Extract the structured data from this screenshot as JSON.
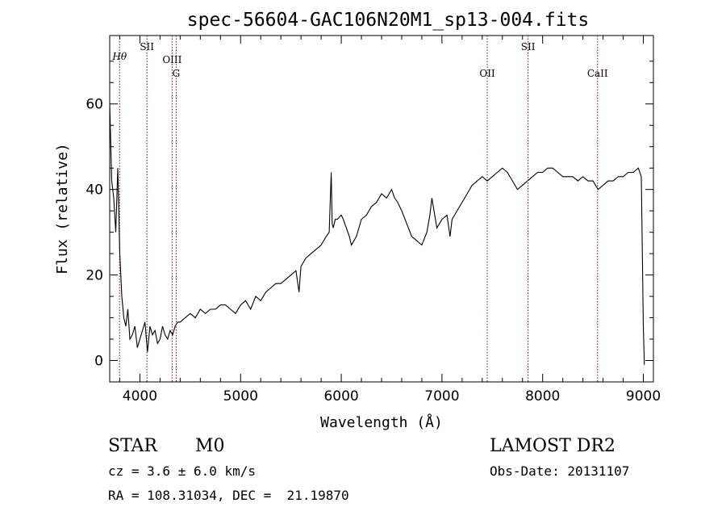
{
  "chart_data": {
    "type": "line",
    "title": "spec-56604-GAC106N20M1_sp13-004.fits",
    "xlabel": "Wavelength (Å)",
    "ylabel": "Flux (relative)",
    "xlim": [
      3700,
      9100
    ],
    "ylim": [
      -5,
      76
    ],
    "xticks": [
      4000,
      5000,
      6000,
      7000,
      8000,
      9000
    ],
    "yticks": [
      0,
      20,
      40,
      60
    ],
    "grid": false,
    "line_color": "#000000",
    "marker_color": "#8b0000",
    "lines": [
      {
        "label": "Hθ",
        "x": 3798
      },
      {
        "label": "SII",
        "x": 4070
      },
      {
        "label": "OIII",
        "x": 4320
      },
      {
        "label": "G",
        "x": 4360
      },
      {
        "label": "OII",
        "x": 7450
      },
      {
        "label": "SII",
        "x": 7855
      },
      {
        "label": "CaII",
        "x": 8545
      }
    ],
    "series": [
      {
        "x": [
          3700,
          3720,
          3740,
          3760,
          3780,
          3800,
          3820,
          3840,
          3860,
          3880,
          3900,
          3925,
          3950,
          3975,
          4000,
          4025,
          4050,
          4075,
          4100,
          4125,
          4150,
          4175,
          4200,
          4225,
          4250,
          4275,
          4300,
          4325,
          4350,
          4375,
          4400,
          4450,
          4500,
          4550,
          4600,
          4650,
          4700,
          4750,
          4800,
          4850,
          4900,
          4950,
          5000,
          5050,
          5100,
          5150,
          5200,
          5250,
          5300,
          5350,
          5400,
          5450,
          5500,
          5550,
          5580,
          5600,
          5650,
          5700,
          5750,
          5800,
          5850,
          5880,
          5900,
          5910,
          5920,
          5940,
          5960,
          6000,
          6020,
          6050,
          6080,
          6100,
          6150,
          6200,
          6250,
          6300,
          6350,
          6400,
          6450,
          6500,
          6530,
          6560,
          6600,
          6650,
          6700,
          6750,
          6800,
          6850,
          6880,
          6900,
          6950,
          7000,
          7050,
          7080,
          7100,
          7150,
          7200,
          7250,
          7300,
          7350,
          7400,
          7450,
          7500,
          7550,
          7600,
          7650,
          7700,
          7750,
          7800,
          7850,
          7900,
          7950,
          8000,
          8050,
          8100,
          8150,
          8200,
          8250,
          8300,
          8350,
          8400,
          8450,
          8500,
          8550,
          8600,
          8650,
          8700,
          8750,
          8800,
          8850,
          8900,
          8950,
          8980,
          9000,
          9010
        ],
        "values": [
          60,
          42,
          38,
          30,
          45,
          25,
          15,
          10,
          8,
          12,
          5,
          6,
          8,
          3,
          5,
          7,
          9,
          2,
          8,
          6,
          7,
          4,
          5,
          8,
          6,
          5,
          7,
          6,
          8,
          9,
          9,
          10,
          11,
          10,
          12,
          11,
          12,
          12,
          13,
          13,
          12,
          11,
          13,
          14,
          12,
          15,
          14,
          16,
          17,
          18,
          18,
          19,
          20,
          21,
          16,
          22,
          24,
          25,
          26,
          27,
          29,
          30,
          44,
          32,
          31,
          33,
          33,
          34,
          33,
          31,
          29,
          27,
          29,
          33,
          34,
          36,
          37,
          39,
          38,
          40,
          38,
          37,
          35,
          32,
          29,
          28,
          27,
          30,
          34,
          38,
          31,
          33,
          34,
          29,
          33,
          35,
          37,
          39,
          41,
          42,
          43,
          42,
          43,
          44,
          45,
          44,
          42,
          40,
          41,
          42,
          43,
          44,
          44,
          45,
          45,
          44,
          43,
          43,
          43,
          42,
          43,
          42,
          42,
          40,
          41,
          42,
          42,
          43,
          43,
          44,
          44,
          45,
          43,
          8,
          -1
        ]
      }
    ]
  },
  "info": {
    "object_type": "STAR",
    "subclass": "M0",
    "survey": "LAMOST DR2",
    "cz": "cz = 3.6 ± 6.0 km/s",
    "obs_date": "Obs-Date: 20131107",
    "coords": "RA = 108.31034, DEC =  21.19870"
  }
}
